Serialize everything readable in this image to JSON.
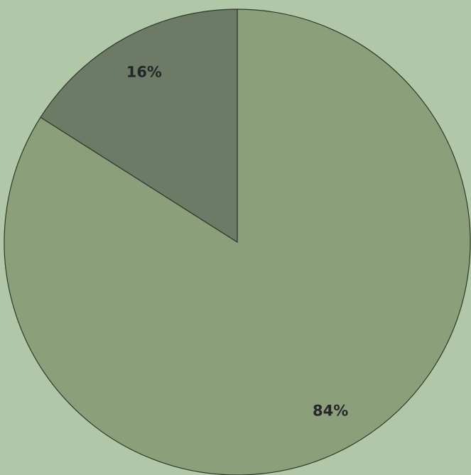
{
  "chart_data": {
    "type": "pie",
    "values": [
      84,
      16
    ],
    "value_labels": [
      "84%",
      "16%"
    ],
    "colors": [
      "#8b9f7b",
      "#6c7a66"
    ],
    "start_angle": 0,
    "direction": "clockwise"
  }
}
